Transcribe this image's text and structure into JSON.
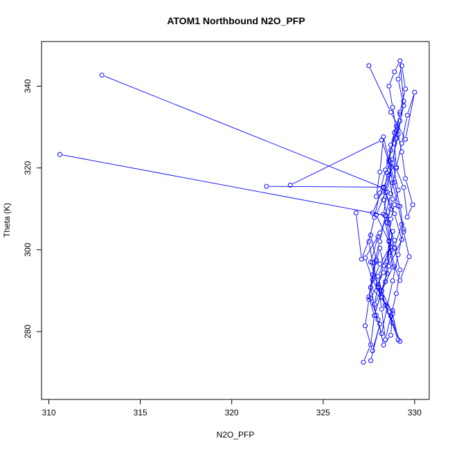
{
  "chart_data": {
    "type": "line",
    "title": "ATOM1 Northbound N2O_PFP",
    "xlabel": "N2O_PFP",
    "ylabel": "Theta (K)",
    "xlim": [
      309.6,
      330.8
    ],
    "ylim": [
      263.4,
      350.9
    ],
    "x_ticks": [
      310,
      315,
      320,
      325,
      330
    ],
    "y_ticks": [
      280,
      300,
      320,
      340
    ],
    "grid": false,
    "markers": "open-circle",
    "line_color": "#0000ff",
    "series": [
      {
        "x": [
          327.2,
          327.6,
          327.8,
          327.5,
          327.7,
          327.9,
          328.1,
          328.3,
          328.0,
          327.8,
          328.4,
          328.6,
          328.8,
          328.5,
          328.7,
          328.9,
          329.1,
          328.8,
          329.0,
          329.2,
          329.4,
          329.1,
          329.3,
          329.5,
          329.2,
          328.9,
          329.0,
          329.4,
          329.6,
          329.9,
          329.5,
          329.3,
          329.0,
          328.7,
          328.5,
          328.3,
          328.6,
          328.9,
          329.2,
          329.0,
          328.7,
          328.4,
          328.2,
          328.0,
          327.7,
          327.5,
          327.8,
          328.1,
          328.4,
          328.7,
          329.0,
          328.8,
          328.6,
          328.9,
          329.2,
          329.4,
          329.1,
          328.8,
          328.5,
          328.3,
          328.6,
          328.9,
          329.2,
          329.7,
          329.4,
          329.1,
          328.8,
          328.6,
          328.9,
          329.2
        ],
        "y": [
          272.5,
          276.8,
          283.9,
          288.5,
          293.9,
          297.2,
          300.4,
          296.1,
          291.0,
          286.6,
          292.2,
          299.3,
          304.5,
          297.1,
          307.5,
          311.0,
          314.6,
          321.2,
          327.2,
          331.5,
          335.2,
          341.7,
          345.0,
          339.3,
          333.7,
          326.0,
          319.9,
          315.2,
          308.0,
          311.0,
          317.4,
          323.9,
          330.2,
          325.6,
          318.8,
          312.2,
          306.4,
          300.3,
          295.1,
          289.3,
          283.8,
          278.0,
          285.5,
          291.5,
          296.9,
          302.0,
          307.9,
          313.9,
          319.5,
          324.3,
          329.1,
          334.8,
          340.0,
          343.5,
          346.2,
          336.3,
          328.2,
          322.1,
          314.1,
          308.7,
          302.2,
          296.0,
          292.5,
          298.3,
          304.4,
          310.7,
          316.4,
          321.5,
          328.6,
          333.2
        ]
      },
      {
        "x": [
          327.5,
          328.7,
          329.5,
          330.0,
          329.6,
          329.3,
          329.0,
          328.7,
          328.4,
          328.1,
          327.8,
          327.6,
          327.9,
          328.2,
          328.5,
          328.8,
          329.1,
          329.4,
          329.2,
          328.9,
          328.6,
          328.3,
          328.1,
          327.9
        ],
        "y": [
          345.0,
          333.6,
          327.0,
          338.5,
          332.9,
          326.0,
          320.2,
          313.7,
          308.3,
          302.0,
          296.8,
          290.8,
          284.0,
          279.5,
          286.1,
          292.4,
          298.8,
          305.0,
          310.6,
          316.5,
          322.0,
          327.6,
          319.0,
          313.0
        ]
      },
      {
        "x": [
          312.9,
          328.3,
          328.9,
          329.3,
          328.6,
          328.2,
          328.8,
          329.1,
          328.4,
          328.0,
          328.7,
          328.5,
          328.8,
          328.6,
          327.7
        ],
        "y": [
          342.7,
          315.1,
          308.8,
          302.5,
          296.0,
          290.0,
          284.4,
          278.0,
          286.5,
          293.5,
          300.7,
          306.6,
          312.4,
          318.3,
          309.0
        ]
      },
      {
        "x": [
          310.6,
          328.4,
          328.9,
          328.1,
          327.6,
          328.8,
          328.7,
          328.3,
          328.0,
          327.6,
          328.3,
          328.9,
          329.3
        ],
        "y": [
          323.3,
          308.4,
          302.3,
          296.5,
          290.8,
          285.1,
          279.1,
          276.7,
          282.9,
          288.1,
          294.4,
          300.6,
          306.2
        ]
      },
      {
        "x": [
          321.9,
          328.3,
          328.7,
          328.1,
          327.3,
          327.7,
          328.2,
          328.8,
          329.2,
          328.6,
          328.0,
          327.6,
          328.0
        ],
        "y": [
          315.5,
          315.3,
          309.9,
          304.1,
          298.0,
          292.7,
          288.4,
          282.1,
          277.6,
          284.8,
          290.8,
          297.0,
          303.2
        ]
      },
      {
        "x": [
          323.2,
          328.2,
          328.7,
          328.4,
          327.9,
          328.6,
          328.8,
          328.2,
          327.8,
          328.5
        ],
        "y": [
          315.8,
          326.8,
          320.1,
          314.0,
          308.5,
          302.0,
          295.7,
          289.9,
          283.9,
          294.2
        ]
      },
      {
        "x": [
          326.8,
          327.1,
          327.6,
          327.9,
          327.5,
          327.3,
          327.7,
          328.1,
          327.6
        ],
        "y": [
          309.0,
          297.7,
          303.6,
          297.6,
          287.8,
          281.4,
          275.3,
          281.8,
          272.9
        ]
      }
    ]
  }
}
